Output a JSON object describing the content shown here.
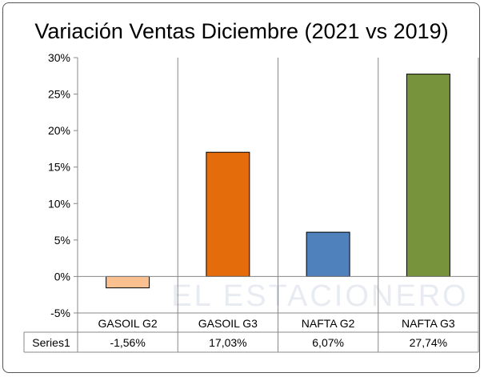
{
  "chart_data": {
    "type": "bar",
    "title": "Variación Ventas Diciembre (2021 vs 2019)",
    "categories": [
      "GASOIL G2",
      "GASOIL G3",
      "NAFTA G2",
      "NAFTA G3"
    ],
    "series": [
      {
        "name": "Series1",
        "values": [
          -1.56,
          17.03,
          6.07,
          27.74
        ]
      }
    ],
    "data_labels": [
      "-1,56%",
      "17,03%",
      "6,07%",
      "27,74%"
    ],
    "colors": [
      "#FAC090",
      "#E46C0A",
      "#4F81BD",
      "#77933C"
    ],
    "ylim": [
      -5,
      30
    ],
    "yticks": [
      -5,
      0,
      5,
      10,
      15,
      20,
      25,
      30
    ],
    "ytick_labels": [
      "-5%",
      "0%",
      "5%",
      "10%",
      "15%",
      "20%",
      "25%",
      "30%"
    ],
    "xlabel": "",
    "ylabel": "",
    "grid": false,
    "legend": "data-table",
    "watermark": "EL ESTACIONERO"
  }
}
